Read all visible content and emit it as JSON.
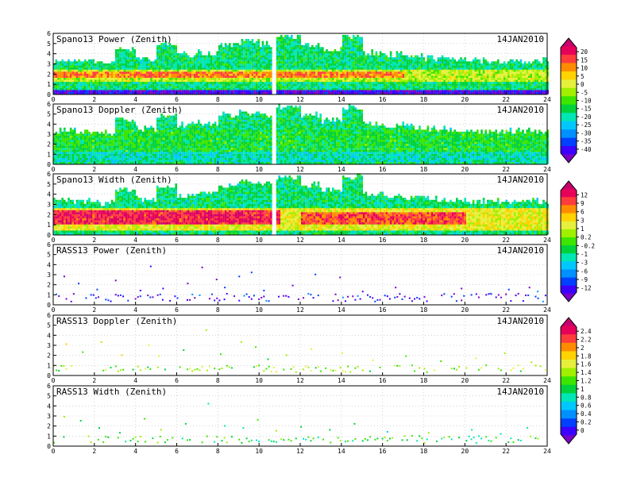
{
  "chart_data": [
    {
      "type": "heatmap",
      "title": "Spano13 Power (Zenith)",
      "date": "14JAN2010",
      "x_ticks": [
        "0",
        "2",
        "4",
        "6",
        "8",
        "10",
        "12",
        "14",
        "16",
        "18",
        "20",
        "22",
        "24"
      ],
      "y_ticks": [
        "0",
        "1",
        "2",
        "3",
        "4",
        "5",
        "6"
      ],
      "xlim": [
        0,
        24
      ],
      "ylim": [
        0,
        6
      ],
      "colorbar": [
        "20",
        "15",
        "10",
        "5",
        "0",
        "-5",
        "-10",
        "-15",
        "-20",
        "-25",
        "-30",
        "-35",
        "-40"
      ],
      "layers": [
        {
          "x": [
            0,
            24
          ],
          "y": [
            0.2,
            3.3
          ],
          "level": 0.4
        },
        {
          "x": [
            0,
            24
          ],
          "y": [
            1.2,
            2.3
          ],
          "level": 0.6
        },
        {
          "x": [
            0,
            17
          ],
          "y": [
            1.6,
            2.1
          ],
          "level": 0.8
        },
        {
          "x": [
            0,
            24
          ],
          "y": [
            0,
            0.25
          ],
          "level": 0.05
        }
      ],
      "tops": [
        [
          0,
          3.3
        ],
        [
          1,
          3.2
        ],
        [
          2,
          3.0
        ],
        [
          3,
          4.4
        ],
        [
          4,
          3.5
        ],
        [
          5,
          4.8
        ],
        [
          6,
          3.8
        ],
        [
          7,
          4.0
        ],
        [
          8,
          4.8
        ],
        [
          9,
          5.1
        ],
        [
          10,
          4.8
        ],
        [
          10.6,
          5.6
        ],
        [
          11,
          5.6
        ],
        [
          12,
          4.8
        ],
        [
          13,
          4.3
        ],
        [
          14,
          5.6
        ],
        [
          15,
          4.0
        ],
        [
          16,
          3.8
        ],
        [
          17,
          3.6
        ],
        [
          18,
          3.4
        ],
        [
          19,
          3.3
        ],
        [
          20,
          3.2
        ],
        [
          22,
          3.2
        ],
        [
          24,
          3.2
        ]
      ]
    },
    {
      "type": "heatmap",
      "title": "Spano13 Doppler (Zenith)",
      "date": "14JAN2010",
      "x_ticks": [
        "0",
        "2",
        "4",
        "6",
        "8",
        "10",
        "12",
        "14",
        "16",
        "18",
        "20",
        "22",
        "24"
      ],
      "y_ticks": [
        "0",
        "1",
        "2",
        "3",
        "4",
        "5",
        "6"
      ],
      "xlim": [
        0,
        24
      ],
      "ylim": [
        0,
        6
      ],
      "colorbar": [],
      "layers": [
        {
          "x": [
            0,
            24
          ],
          "y": [
            0.2,
            3.3
          ],
          "level": 0.45
        },
        {
          "x": [
            0,
            24
          ],
          "y": [
            0.2,
            1.2
          ],
          "level": 0.35
        }
      ],
      "tops": [
        [
          0,
          3.3
        ],
        [
          1,
          3.2
        ],
        [
          2,
          3.0
        ],
        [
          3,
          4.4
        ],
        [
          4,
          3.5
        ],
        [
          5,
          4.8
        ],
        [
          6,
          3.8
        ],
        [
          7,
          4.0
        ],
        [
          8,
          4.8
        ],
        [
          9,
          5.1
        ],
        [
          10,
          4.8
        ],
        [
          10.6,
          5.6
        ],
        [
          11,
          5.6
        ],
        [
          12,
          4.8
        ],
        [
          13,
          4.3
        ],
        [
          14,
          5.6
        ],
        [
          15,
          4.0
        ],
        [
          16,
          3.8
        ],
        [
          17,
          3.6
        ],
        [
          18,
          3.4
        ],
        [
          19,
          3.3
        ],
        [
          20,
          3.2
        ],
        [
          22,
          3.2
        ],
        [
          24,
          3.2
        ]
      ]
    },
    {
      "type": "heatmap",
      "title": "Spano13 Width (Zenith)",
      "date": "14JAN2010",
      "x_ticks": [
        "0",
        "2",
        "4",
        "6",
        "8",
        "10",
        "12",
        "14",
        "16",
        "18",
        "20",
        "22",
        "24"
      ],
      "y_ticks": [
        "0",
        "1",
        "2",
        "3",
        "4",
        "5",
        "6"
      ],
      "xlim": [
        0,
        24
      ],
      "ylim": [
        0,
        6
      ],
      "colorbar": [
        "12",
        "9",
        "6",
        "3",
        "1",
        "0.2",
        "-0.2",
        "-1",
        "-3",
        "-6",
        "-9",
        "-12"
      ],
      "layers": [
        {
          "x": [
            0,
            24
          ],
          "y": [
            0.2,
            3.3
          ],
          "level": 0.4
        },
        {
          "x": [
            0,
            24
          ],
          "y": [
            0.4,
            2.6
          ],
          "level": 0.65
        },
        {
          "x": [
            0,
            11
          ],
          "y": [
            0.9,
            2.4
          ],
          "level": 0.9
        },
        {
          "x": [
            12,
            20
          ],
          "y": [
            1.0,
            2.2
          ],
          "level": 0.85
        }
      ],
      "tops": [
        [
          0,
          3.3
        ],
        [
          1,
          3.2
        ],
        [
          2,
          3.0
        ],
        [
          3,
          4.4
        ],
        [
          4,
          3.5
        ],
        [
          5,
          4.8
        ],
        [
          6,
          3.8
        ],
        [
          7,
          4.0
        ],
        [
          8,
          4.8
        ],
        [
          9,
          5.1
        ],
        [
          10,
          4.8
        ],
        [
          10.6,
          5.6
        ],
        [
          11,
          5.6
        ],
        [
          12,
          4.8
        ],
        [
          13,
          4.3
        ],
        [
          14,
          5.6
        ],
        [
          15,
          4.0
        ],
        [
          16,
          3.8
        ],
        [
          17,
          3.6
        ],
        [
          18,
          3.4
        ],
        [
          19,
          3.3
        ],
        [
          20,
          3.2
        ],
        [
          22,
          3.2
        ],
        [
          24,
          3.2
        ]
      ]
    },
    {
      "type": "scatter",
      "title": "RASS13 Power (Zenith)",
      "date": "14JAN2010",
      "x_ticks": [
        "0",
        "2",
        "4",
        "6",
        "8",
        "10",
        "12",
        "14",
        "16",
        "18",
        "20",
        "22",
        "24"
      ],
      "y_ticks": [
        "0",
        "1",
        "2",
        "3",
        "4",
        "5",
        "6"
      ],
      "xlim": [
        0,
        24
      ],
      "ylim": [
        0,
        6
      ],
      "colorbar": [],
      "band": {
        "x": [
          0,
          24
        ],
        "y": [
          0.4,
          1.2
        ],
        "level": 0.08
      },
      "points": [
        [
          0.5,
          2.9
        ],
        [
          1.2,
          2.2
        ],
        [
          2.1,
          1.6
        ],
        [
          3.0,
          2.5
        ],
        [
          4.2,
          1.5
        ],
        [
          4.7,
          3.9
        ],
        [
          5.3,
          1.7
        ],
        [
          6.5,
          2.2
        ],
        [
          7.2,
          3.8
        ],
        [
          7.9,
          2.6
        ],
        [
          8.3,
          1.8
        ],
        [
          9.0,
          2.9
        ],
        [
          9.6,
          3.3
        ],
        [
          10.2,
          1.5
        ],
        [
          11.6,
          2.0
        ],
        [
          12.7,
          3.1
        ],
        [
          13.9,
          2.8
        ],
        [
          15.0,
          1.4
        ],
        [
          16.6,
          1.8
        ],
        [
          19.8,
          1.7
        ],
        [
          21.2,
          1.2
        ],
        [
          22.1,
          1.6
        ],
        [
          23.1,
          1.8
        ],
        [
          23.5,
          1.4
        ]
      ]
    },
    {
      "type": "scatter",
      "title": "RASS13 Doppler (Zenith)",
      "date": "14JAN2010",
      "x_ticks": [
        "0",
        "2",
        "4",
        "6",
        "8",
        "10",
        "12",
        "14",
        "16",
        "18",
        "20",
        "22",
        "24"
      ],
      "y_ticks": [
        "0",
        "1",
        "2",
        "3",
        "4",
        "5",
        "6"
      ],
      "xlim": [
        0,
        24
      ],
      "ylim": [
        0,
        6
      ],
      "colorbar": [
        "2.4",
        "2.2",
        "2",
        "1.8",
        "1.6",
        "1.4",
        "1.2",
        "1",
        "0.8",
        "0.6",
        "0.4",
        "0.2",
        "0"
      ],
      "band": {
        "x": [
          0,
          24
        ],
        "y": [
          0.4,
          1.1
        ],
        "level": 0.55
      },
      "points": [
        [
          0.6,
          3.2
        ],
        [
          1.4,
          2.4
        ],
        [
          2.3,
          3.4
        ],
        [
          3.3,
          2.1
        ],
        [
          4.6,
          3.1
        ],
        [
          5.1,
          2.0
        ],
        [
          6.3,
          2.6
        ],
        [
          7.4,
          4.6
        ],
        [
          8.1,
          2.2
        ],
        [
          9.1,
          3.4
        ],
        [
          9.8,
          2.9
        ],
        [
          10.4,
          1.7
        ],
        [
          11.3,
          2.1
        ],
        [
          12.5,
          2.7
        ],
        [
          14.0,
          2.3
        ],
        [
          15.5,
          1.6
        ],
        [
          17.1,
          2.0
        ],
        [
          18.8,
          1.5
        ],
        [
          20.5,
          1.8
        ],
        [
          21.9,
          2.3
        ],
        [
          23.2,
          1.4
        ]
      ]
    },
    {
      "type": "scatter",
      "title": "RASS13 Width (Zenith)",
      "date": "14JAN2010",
      "x_ticks": [
        "0",
        "2",
        "4",
        "6",
        "8",
        "10",
        "12",
        "14",
        "16",
        "18",
        "20",
        "22",
        "24"
      ],
      "y_ticks": [
        "0",
        "1",
        "2",
        "3",
        "4",
        "5",
        "6"
      ],
      "xlim": [
        0,
        24
      ],
      "ylim": [
        0,
        6
      ],
      "colorbar": [],
      "band": {
        "x": [
          0,
          24
        ],
        "y": [
          0.4,
          1.1
        ],
        "level": 0.45
      },
      "points": [
        [
          0.5,
          3.0
        ],
        [
          1.3,
          2.6
        ],
        [
          2.2,
          1.9
        ],
        [
          3.2,
          1.4
        ],
        [
          4.4,
          2.8
        ],
        [
          5.2,
          1.7
        ],
        [
          6.4,
          2.3
        ],
        [
          7.5,
          4.3
        ],
        [
          8.3,
          2.1
        ],
        [
          9.2,
          1.9
        ],
        [
          9.9,
          2.7
        ],
        [
          10.8,
          1.6
        ],
        [
          12.0,
          2.0
        ],
        [
          13.4,
          1.7
        ],
        [
          14.6,
          2.3
        ],
        [
          16.2,
          1.5
        ],
        [
          18.2,
          1.4
        ],
        [
          20.3,
          1.7
        ],
        [
          21.7,
          1.3
        ],
        [
          23.0,
          1.9
        ]
      ]
    }
  ]
}
